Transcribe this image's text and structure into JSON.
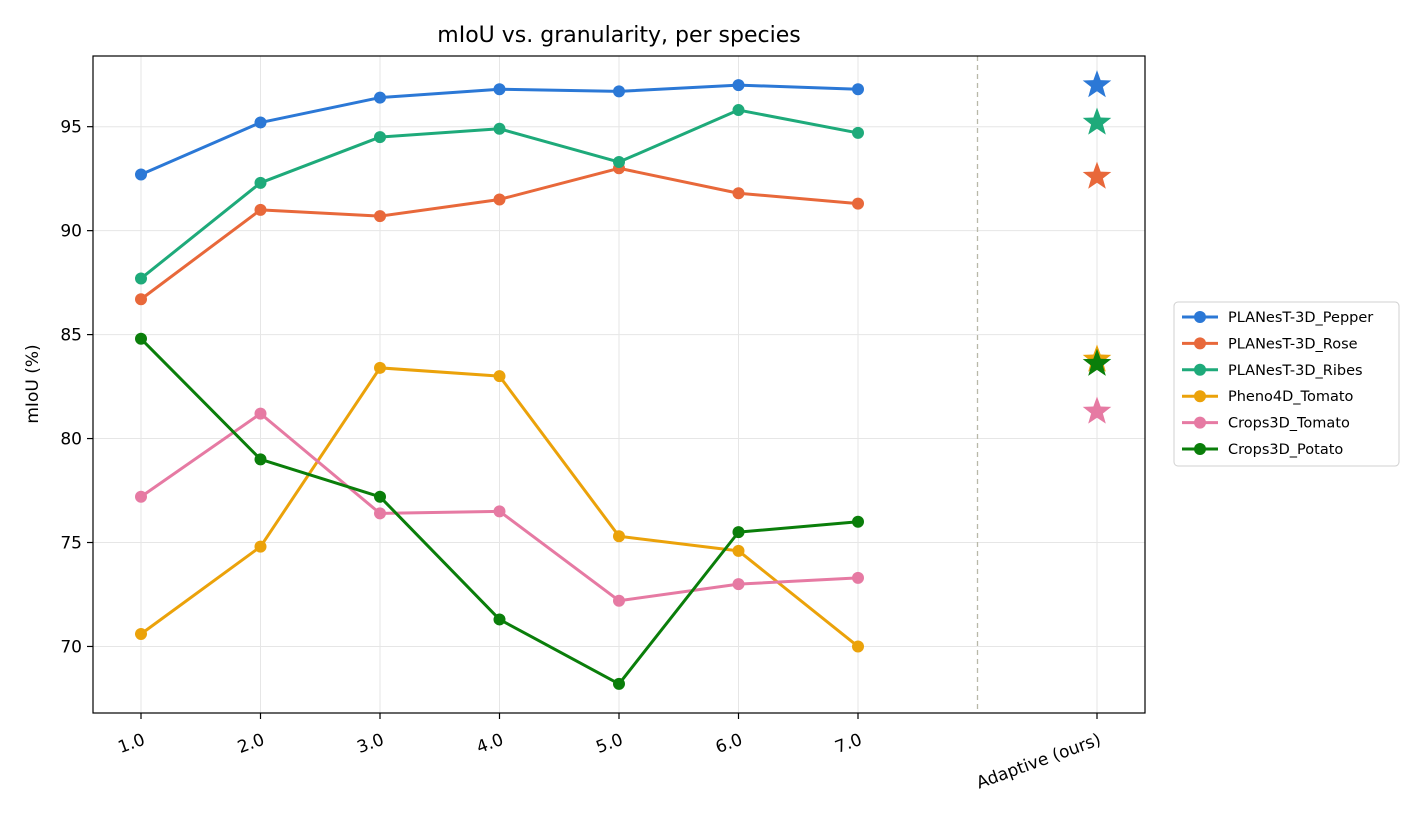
{
  "chart_data": {
    "type": "line",
    "title": "mIoU vs. granularity, per species",
    "xlabel": "",
    "ylabel": "mIoU (%)",
    "categories": [
      "1.0",
      "2.0",
      "3.0",
      "4.0",
      "5.0",
      "6.0",
      "7.0"
    ],
    "adaptive_label": "Adaptive (ours)",
    "ylim": [
      66.8,
      98.4
    ],
    "yticks": [
      70,
      75,
      80,
      85,
      90,
      95
    ],
    "grid": true,
    "legend_position": "right",
    "series": [
      {
        "name": "PLANesT-3D_Pepper",
        "color": "#2b78d6",
        "values": [
          92.7,
          95.2,
          96.4,
          96.8,
          96.7,
          97.0,
          96.8
        ],
        "adaptive": 97.0
      },
      {
        "name": "PLANesT-3D_Rose",
        "color": "#e8683a",
        "values": [
          86.7,
          91.0,
          90.7,
          91.5,
          93.0,
          91.8,
          91.3
        ],
        "adaptive": 92.6
      },
      {
        "name": "PLANesT-3D_Ribes",
        "color": "#1eaa7a",
        "values": [
          87.7,
          92.3,
          94.5,
          94.9,
          93.3,
          95.8,
          94.7
        ],
        "adaptive": 95.2
      },
      {
        "name": "Pheno4D_Tomato",
        "color": "#eba20a",
        "values": [
          70.6,
          74.8,
          83.4,
          83.0,
          75.3,
          74.6,
          70.0
        ],
        "adaptive": 83.8
      },
      {
        "name": "Crops3D_Tomato",
        "color": "#e67aa3",
        "values": [
          77.2,
          81.2,
          76.4,
          76.5,
          72.2,
          73.0,
          73.3
        ],
        "adaptive": 81.3
      },
      {
        "name": "Crops3D_Potato",
        "color": "#0a7e0a",
        "values": [
          84.8,
          79.0,
          77.2,
          71.3,
          68.2,
          75.5,
          76.0
        ],
        "adaptive": 83.6
      }
    ]
  }
}
